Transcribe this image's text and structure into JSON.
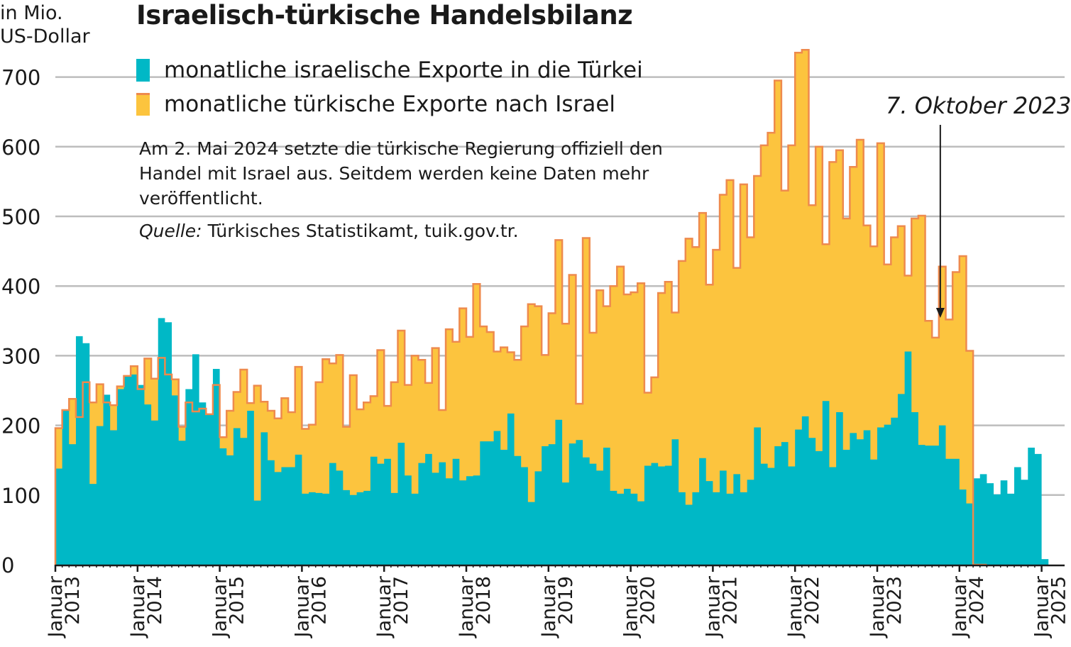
{
  "title": "Israelisch-türkische Handelsbilanz",
  "unit_label": "in Mio.\nUS-Dollar",
  "note": "Am 2. Mai 2024 setzte die türkische Regierung offiziell den Handel mit Israel aus. Seitdem werden keine Daten mehr veröffentlicht.",
  "source": {
    "label": "Quelle:",
    "text": "Türkisches Statistikamt, tuik.gov.tr."
  },
  "annotation": {
    "text": "7. Oktober 2023",
    "date": "2023-10"
  },
  "colors": {
    "israel": "#00b8c6",
    "turkey": "#fcc43e",
    "turkey_line": "#ee8a4d",
    "grid": "#bdbdbd",
    "text": "#1a1a1a"
  },
  "chart_data": {
    "type": "area",
    "x_start": "2013-01",
    "ylim": [
      0,
      750
    ],
    "yticks": [
      0,
      100,
      200,
      300,
      400,
      500,
      600,
      700
    ],
    "x_ticks": [
      {
        "line1": "Januar",
        "line2": "2013"
      },
      {
        "line1": "Januar",
        "line2": "2014"
      },
      {
        "line1": "Januar",
        "line2": "2015"
      },
      {
        "line1": "Januar",
        "line2": "2016"
      },
      {
        "line1": "Januar",
        "line2": "2017"
      },
      {
        "line1": "Januar",
        "line2": "2018"
      },
      {
        "line1": "Januar",
        "line2": "2019"
      },
      {
        "line1": "Januar",
        "line2": "2020"
      },
      {
        "line1": "Januar",
        "line2": "2021"
      },
      {
        "line1": "Januar",
        "line2": "2022"
      },
      {
        "line1": "Januar",
        "line2": "2023"
      },
      {
        "line1": "Januar",
        "line2": "2024"
      },
      {
        "line1": "Januar",
        "line2": "2025"
      }
    ],
    "series": [
      {
        "name": "monatliche israelische Exporte in die Türkei",
        "values": [
          138,
          222,
          173,
          328,
          318,
          116,
          199,
          244,
          193,
          252,
          271,
          273,
          258,
          230,
          207,
          354,
          348,
          243,
          178,
          252,
          302,
          233,
          216,
          281,
          167,
          157,
          196,
          182,
          221,
          92,
          190,
          150,
          133,
          140,
          140,
          158,
          102,
          104,
          103,
          102,
          146,
          135,
          107,
          100,
          104,
          106,
          155,
          145,
          152,
          103,
          175,
          128,
          102,
          146,
          159,
          132,
          147,
          124,
          152,
          121,
          127,
          128,
          177,
          177,
          192,
          165,
          217,
          156,
          140,
          90,
          134,
          170,
          173,
          208,
          118,
          174,
          179,
          154,
          145,
          135,
          168,
          106,
          102,
          109,
          102,
          91,
          142,
          146,
          141,
          142,
          180,
          104,
          86,
          104,
          153,
          120,
          104,
          135,
          102,
          130,
          104,
          122,
          197,
          145,
          139,
          170,
          176,
          141,
          194,
          213,
          182,
          163,
          235,
          140,
          219,
          165,
          189,
          180,
          193,
          151,
          197,
          201,
          211,
          245,
          306,
          219,
          172,
          171,
          171,
          200,
          152,
          152,
          108,
          88,
          124,
          130,
          117,
          101,
          121,
          102,
          140,
          122,
          168,
          159,
          8,
          0
        ]
      },
      {
        "name": "monatliche türkische Exporte nach Israel",
        "values": [
          196,
          222,
          238,
          212,
          262,
          233,
          259,
          233,
          229,
          256,
          271,
          285,
          252,
          296,
          267,
          297,
          273,
          266,
          198,
          233,
          220,
          224,
          216,
          258,
          183,
          221,
          248,
          280,
          232,
          257,
          234,
          221,
          210,
          239,
          219,
          284,
          195,
          201,
          262,
          295,
          289,
          301,
          198,
          272,
          223,
          233,
          242,
          308,
          228,
          262,
          336,
          258,
          300,
          294,
          261,
          311,
          222,
          338,
          320,
          368,
          327,
          403,
          342,
          334,
          306,
          312,
          305,
          294,
          342,
          374,
          371,
          301,
          361,
          466,
          346,
          416,
          231,
          469,
          333,
          394,
          371,
          400,
          428,
          388,
          391,
          404,
          247,
          269,
          390,
          406,
          362,
          436,
          468,
          456,
          505,
          402,
          452,
          531,
          552,
          426,
          546,
          470,
          558,
          602,
          620,
          695,
          537,
          602,
          735,
          739,
          516,
          600,
          460,
          578,
          595,
          497,
          571,
          610,
          487,
          457,
          605,
          431,
          470,
          486,
          415,
          497,
          501,
          350,
          326,
          428,
          352,
          420,
          443,
          307,
          0,
          0
        ]
      }
    ]
  }
}
